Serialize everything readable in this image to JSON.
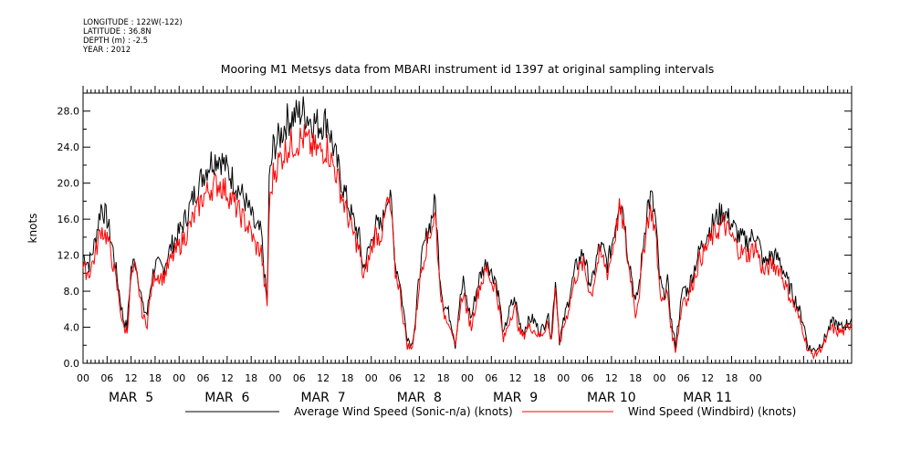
{
  "meta": {
    "longitude": "LONGITUDE : 122W(-122)",
    "latitude": "LATITUDE : 36.8N",
    "depth": "DEPTH (m) : -2.5",
    "year": "YEAR : 2012"
  },
  "chart_data": {
    "type": "line",
    "title": "Mooring M1 Metsys data from MBARI instrument id 1397 at original sampling intervals",
    "ylabel": "knots",
    "xlabel": "",
    "ylim": [
      0,
      30
    ],
    "yticks": [
      "0.0",
      "4.0",
      "8.0",
      "12.0",
      "16.0",
      "20.0",
      "24.0",
      "28.0"
    ],
    "xlim_hours": [
      0,
      168
    ],
    "x_tick_labels": [
      "00",
      "06",
      "12",
      "18",
      "00",
      "06",
      "12",
      "18",
      "00",
      "06",
      "12",
      "18",
      "00",
      "06",
      "12",
      "18",
      "00",
      "06",
      "12",
      "18",
      "00",
      "06",
      "12",
      "18",
      "00",
      "06",
      "12",
      "18",
      "00"
    ],
    "day_labels": [
      "MAR  5",
      "MAR  6",
      "MAR  7",
      "MAR  8",
      "MAR  9",
      "MAR 10",
      "MAR 11"
    ],
    "grid": false,
    "legend_position": "bottom",
    "x_units": "hours from MAR 5 00:00",
    "series": [
      {
        "name": "Average Wind Speed (Sonic-n/a) (knots)",
        "color": "#000000",
        "points": [
          [
            0,
            12.0
          ],
          [
            1.5,
            11.0
          ],
          [
            3,
            13.5
          ],
          [
            4.5,
            17.5
          ],
          [
            6,
            16.0
          ],
          [
            7.5,
            12.5
          ],
          [
            9,
            8.0
          ],
          [
            10,
            5.0
          ],
          [
            11,
            4.0
          ],
          [
            12,
            10.5
          ],
          [
            13,
            11.5
          ],
          [
            14,
            9.0
          ],
          [
            15,
            6.0
          ],
          [
            16,
            5.5
          ],
          [
            17,
            9.0
          ],
          [
            18,
            11.0
          ],
          [
            20,
            10.5
          ],
          [
            22,
            13.0
          ],
          [
            24,
            14.5
          ],
          [
            26,
            16.5
          ],
          [
            28,
            19.0
          ],
          [
            30,
            21.0
          ],
          [
            32,
            22.5
          ],
          [
            34,
            23.0
          ],
          [
            36,
            21.5
          ],
          [
            38,
            20.0
          ],
          [
            40,
            18.5
          ],
          [
            42,
            16.5
          ],
          [
            43,
            15.0
          ],
          [
            44.5,
            14.5
          ],
          [
            45.5,
            9.0
          ],
          [
            46,
            7.0
          ],
          [
            46.5,
            20.0
          ],
          [
            47.5,
            24.0
          ],
          [
            49,
            25.0
          ],
          [
            51,
            27.0
          ],
          [
            53,
            27.5
          ],
          [
            55,
            28.0
          ],
          [
            57,
            27.0
          ],
          [
            59,
            26.5
          ],
          [
            61,
            27.0
          ],
          [
            62,
            25.0
          ],
          [
            63,
            23.0
          ],
          [
            65,
            19.5
          ],
          [
            67,
            16.5
          ],
          [
            69,
            14.0
          ],
          [
            70,
            10.5
          ],
          [
            71,
            12.0
          ],
          [
            72,
            13.5
          ],
          [
            73,
            15.5
          ],
          [
            74,
            15.0
          ],
          [
            75,
            16.0
          ],
          [
            76,
            19.0
          ],
          [
            77,
            17.5
          ],
          [
            78,
            11.0
          ],
          [
            79,
            9.5
          ],
          [
            80,
            6.0
          ],
          [
            81,
            3.0
          ],
          [
            82,
            2.0
          ],
          [
            83,
            4.5
          ],
          [
            84,
            10.0
          ],
          [
            85,
            12.5
          ],
          [
            86,
            14.5
          ],
          [
            87,
            16.0
          ],
          [
            88,
            18.0
          ],
          [
            89,
            10.5
          ],
          [
            90,
            6.5
          ],
          [
            91,
            6.0
          ],
          [
            92,
            4.5
          ],
          [
            93,
            2.0
          ],
          [
            94,
            6.5
          ],
          [
            95,
            9.0
          ],
          [
            96,
            6.5
          ],
          [
            97,
            5.0
          ],
          [
            98,
            7.5
          ],
          [
            99,
            9.5
          ],
          [
            100,
            10.5
          ],
          [
            101,
            11.5
          ],
          [
            102,
            10.0
          ],
          [
            103,
            9.5
          ],
          [
            104,
            7.0
          ],
          [
            105,
            3.0
          ],
          [
            106,
            5.0
          ],
          [
            107,
            6.5
          ],
          [
            108,
            7.0
          ],
          [
            109,
            4.5
          ],
          [
            110,
            3.5
          ],
          [
            111,
            4.5
          ],
          [
            112,
            5.0
          ],
          [
            113,
            4.5
          ],
          [
            114,
            3.5
          ],
          [
            115,
            4.0
          ],
          [
            116,
            5.5
          ],
          [
            117,
            3.0
          ],
          [
            118,
            9.5
          ],
          [
            119,
            2.5
          ],
          [
            120,
            4.5
          ],
          [
            121,
            6.5
          ],
          [
            122,
            8.5
          ],
          [
            123,
            10.5
          ],
          [
            124,
            11.5
          ],
          [
            125,
            12.5
          ],
          [
            126,
            10.0
          ],
          [
            127,
            8.5
          ],
          [
            128,
            11.0
          ],
          [
            129,
            13.0
          ],
          [
            130,
            12.5
          ],
          [
            131,
            11.0
          ],
          [
            132,
            13.0
          ],
          [
            133,
            15.5
          ],
          [
            134,
            18.5
          ],
          [
            135,
            17.0
          ],
          [
            136,
            12.5
          ],
          [
            137,
            10.0
          ],
          [
            138,
            6.5
          ],
          [
            139,
            9.0
          ],
          [
            140,
            13.5
          ],
          [
            141,
            17.5
          ],
          [
            142,
            18.5
          ],
          [
            143,
            16.0
          ],
          [
            144,
            9.5
          ],
          [
            145,
            7.5
          ],
          [
            146,
            9.0
          ],
          [
            147,
            4.5
          ],
          [
            148,
            2.0
          ],
          [
            149,
            5.5
          ],
          [
            150,
            8.5
          ],
          [
            151,
            8.0
          ],
          [
            152,
            9.5
          ],
          [
            154,
            12.5
          ],
          [
            156,
            14.5
          ],
          [
            158,
            16.0
          ],
          [
            160,
            17.0
          ],
          [
            162,
            15.5
          ],
          [
            164,
            14.0
          ],
          [
            166,
            13.5
          ],
          [
            168,
            14.5
          ],
          [
            169,
            13.0
          ],
          [
            170,
            11.0
          ],
          [
            172,
            12.0
          ],
          [
            174,
            11.5
          ],
          [
            176,
            9.0
          ],
          [
            178,
            7.0
          ],
          [
            180,
            4.5
          ],
          [
            181,
            2.0
          ],
          [
            182,
            1.5
          ],
          [
            183,
            1.5
          ],
          [
            184,
            2.0
          ],
          [
            185,
            2.5
          ],
          [
            186,
            3.5
          ],
          [
            187,
            4.5
          ],
          [
            188,
            4.5
          ],
          [
            189,
            4.0
          ],
          [
            190,
            4.0
          ],
          [
            192,
            5.0
          ]
        ]
      },
      {
        "name": "Wind Speed (Windbird) (knots)",
        "color": "#ff0000",
        "points": [
          [
            0,
            10.5
          ],
          [
            1.5,
            10.0
          ],
          [
            3,
            12.0
          ],
          [
            4.5,
            15.0
          ],
          [
            6,
            14.0
          ],
          [
            7.5,
            11.0
          ],
          [
            9,
            7.0
          ],
          [
            10,
            4.0
          ],
          [
            11,
            3.5
          ],
          [
            12,
            9.5
          ],
          [
            13,
            10.5
          ],
          [
            14,
            8.0
          ],
          [
            15,
            5.0
          ],
          [
            16,
            4.5
          ],
          [
            17,
            8.0
          ],
          [
            18,
            10.0
          ],
          [
            20,
            9.5
          ],
          [
            22,
            11.5
          ],
          [
            24,
            13.0
          ],
          [
            26,
            14.5
          ],
          [
            28,
            16.5
          ],
          [
            30,
            18.5
          ],
          [
            32,
            19.5
          ],
          [
            34,
            20.0
          ],
          [
            36,
            19.0
          ],
          [
            38,
            17.5
          ],
          [
            40,
            16.0
          ],
          [
            42,
            14.5
          ],
          [
            43,
            13.0
          ],
          [
            44.5,
            12.5
          ],
          [
            45.5,
            8.0
          ],
          [
            46,
            6.5
          ],
          [
            46.5,
            17.0
          ],
          [
            47.5,
            21.0
          ],
          [
            49,
            22.5
          ],
          [
            51,
            24.0
          ],
          [
            53,
            24.5
          ],
          [
            55,
            25.0
          ],
          [
            57,
            24.0
          ],
          [
            59,
            23.5
          ],
          [
            61,
            24.0
          ],
          [
            62,
            22.5
          ],
          [
            63,
            21.5
          ],
          [
            65,
            18.0
          ],
          [
            67,
            15.0
          ],
          [
            69,
            12.5
          ],
          [
            70,
            9.5
          ],
          [
            71,
            11.0
          ],
          [
            72,
            12.5
          ],
          [
            73,
            14.5
          ],
          [
            74,
            14.0
          ],
          [
            75,
            15.0
          ],
          [
            76,
            18.0
          ],
          [
            77,
            16.5
          ],
          [
            78,
            10.0
          ],
          [
            79,
            8.5
          ],
          [
            80,
            5.0
          ],
          [
            81,
            2.0
          ],
          [
            82,
            1.5
          ],
          [
            83,
            4.0
          ],
          [
            84,
            9.0
          ],
          [
            85,
            11.5
          ],
          [
            86,
            13.5
          ],
          [
            87,
            15.0
          ],
          [
            88,
            16.5
          ],
          [
            89,
            9.5
          ],
          [
            90,
            5.5
          ],
          [
            91,
            5.0
          ],
          [
            92,
            4.0
          ],
          [
            93,
            1.5
          ],
          [
            94,
            5.5
          ],
          [
            95,
            8.0
          ],
          [
            96,
            5.5
          ],
          [
            97,
            4.0
          ],
          [
            98,
            6.5
          ],
          [
            99,
            8.5
          ],
          [
            100,
            9.5
          ],
          [
            101,
            10.5
          ],
          [
            102,
            9.0
          ],
          [
            103,
            8.5
          ],
          [
            104,
            6.0
          ],
          [
            105,
            2.5
          ],
          [
            106,
            4.0
          ],
          [
            107,
            5.5
          ],
          [
            108,
            6.0
          ],
          [
            109,
            3.5
          ],
          [
            110,
            3.0
          ],
          [
            111,
            4.0
          ],
          [
            112,
            4.0
          ],
          [
            113,
            3.5
          ],
          [
            114,
            3.0
          ],
          [
            115,
            3.5
          ],
          [
            116,
            4.5
          ],
          [
            117,
            2.5
          ],
          [
            118,
            8.5
          ],
          [
            119,
            2.0
          ],
          [
            120,
            4.0
          ],
          [
            121,
            5.5
          ],
          [
            122,
            7.5
          ],
          [
            123,
            9.5
          ],
          [
            124,
            10.5
          ],
          [
            125,
            11.0
          ],
          [
            126,
            9.0
          ],
          [
            127,
            7.5
          ],
          [
            128,
            10.0
          ],
          [
            129,
            12.0
          ],
          [
            130,
            11.5
          ],
          [
            131,
            10.0
          ],
          [
            132,
            12.0
          ],
          [
            133,
            14.5
          ],
          [
            134,
            17.0
          ],
          [
            135,
            15.5
          ],
          [
            136,
            11.5
          ],
          [
            137,
            9.0
          ],
          [
            138,
            5.5
          ],
          [
            139,
            8.0
          ],
          [
            140,
            12.5
          ],
          [
            141,
            16.0
          ],
          [
            142,
            17.0
          ],
          [
            143,
            14.5
          ],
          [
            144,
            8.5
          ],
          [
            145,
            6.5
          ],
          [
            146,
            8.0
          ],
          [
            147,
            3.5
          ],
          [
            148,
            1.5
          ],
          [
            149,
            4.5
          ],
          [
            150,
            7.5
          ],
          [
            151,
            7.0
          ],
          [
            152,
            8.5
          ],
          [
            154,
            11.5
          ],
          [
            156,
            13.0
          ],
          [
            158,
            14.5
          ],
          [
            160,
            15.5
          ],
          [
            162,
            14.0
          ],
          [
            164,
            12.5
          ],
          [
            166,
            12.0
          ],
          [
            168,
            13.0
          ],
          [
            169,
            11.5
          ],
          [
            170,
            10.0
          ],
          [
            172,
            11.0
          ],
          [
            174,
            10.5
          ],
          [
            176,
            8.0
          ],
          [
            178,
            6.0
          ],
          [
            180,
            3.5
          ],
          [
            181,
            1.5
          ],
          [
            182,
            1.0
          ],
          [
            183,
            1.0
          ],
          [
            184,
            1.5
          ],
          [
            185,
            2.0
          ],
          [
            186,
            3.0
          ],
          [
            187,
            4.0
          ],
          [
            188,
            3.5
          ],
          [
            189,
            3.5
          ],
          [
            190,
            3.5
          ],
          [
            192,
            4.5
          ]
        ]
      }
    ]
  }
}
